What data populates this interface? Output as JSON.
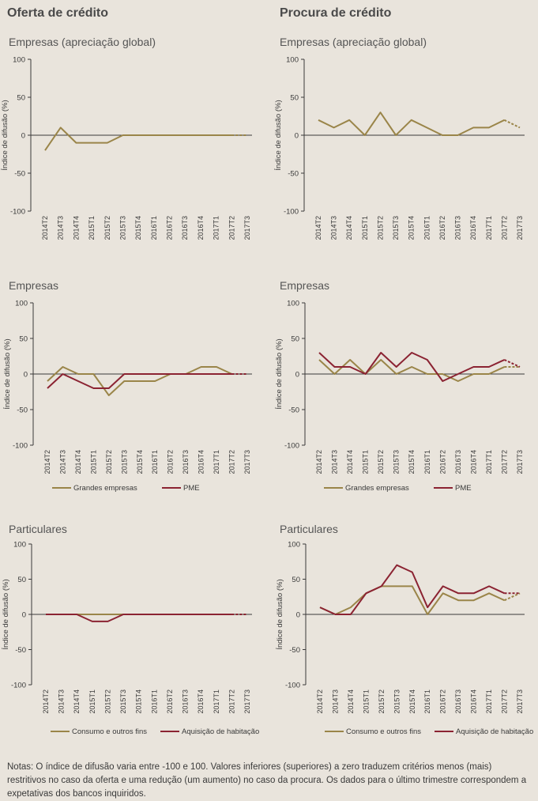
{
  "columns": {
    "left_title": "Oferta de crédito",
    "right_title": "Procura de crédito"
  },
  "colors": {
    "gold": "#9a8549",
    "red": "#8b2332",
    "axis": "#3a3a3a"
  },
  "notes": "Notas: O índice de difusão varia entre -100 e 100. Valores inferiores (superiores) a zero traduzem critérios menos (mais) restritivos no caso da oferta e uma redução (um aumento) no caso da procura. Os dados para o último trimestre correspondem a expetativas dos bancos inquiridos.",
  "chart_data": [
    {
      "id": "supply-global",
      "type": "line",
      "title": "Empresas (apreciação global)",
      "ylabel": "Índice de difusão (%)",
      "ylim": [
        -100,
        100
      ],
      "yticks": [
        "100",
        "50",
        "0",
        "-50",
        "-100"
      ],
      "categories": [
        "2014T2",
        "2014T3",
        "2014T4",
        "2015T1",
        "2015T2",
        "2015T3",
        "2015T4",
        "2016T1",
        "2016T2",
        "2016T3",
        "2016T4",
        "2017T1",
        "2017T2",
        "2017T3"
      ],
      "series": [
        {
          "color": "gold",
          "values": [
            -20,
            10,
            -10,
            -10,
            -10,
            0,
            0,
            0,
            0,
            0,
            0,
            0,
            0,
            0
          ]
        }
      ]
    },
    {
      "id": "demand-global",
      "type": "line",
      "title": "Empresas (apreciação global)",
      "ylabel": "Índice de difusão (%)",
      "ylim": [
        -100,
        100
      ],
      "yticks": [
        "100",
        "50",
        "0",
        "-50",
        "-100"
      ],
      "categories": [
        "2014T2",
        "2014T3",
        "2014T4",
        "2015T1",
        "2015T2",
        "2015T3",
        "2015T4",
        "2016T1",
        "2016T2",
        "2016T3",
        "2016T4",
        "2017T1",
        "2017T2",
        "2017T3"
      ],
      "series": [
        {
          "color": "gold",
          "values": [
            20,
            10,
            20,
            0,
            30,
            0,
            20,
            10,
            0,
            0,
            10,
            10,
            20,
            10
          ]
        }
      ]
    },
    {
      "id": "supply-firms",
      "type": "line",
      "title": "Empresas",
      "ylabel": "Índice de difusão (%)",
      "ylim": [
        -100,
        100
      ],
      "yticks": [
        "100",
        "50",
        "0",
        "-50",
        "-100"
      ],
      "categories": [
        "2014T2",
        "2014T3",
        "2014T4",
        "2015T1",
        "2015T2",
        "2015T3",
        "2015T4",
        "2016T1",
        "2016T2",
        "2016T3",
        "2016T4",
        "2017T1",
        "2017T2",
        "2017T3"
      ],
      "series": [
        {
          "name": "Grandes empresas",
          "color": "gold",
          "values": [
            -10,
            10,
            0,
            0,
            -30,
            -10,
            -10,
            -10,
            0,
            0,
            10,
            10,
            0,
            0
          ]
        },
        {
          "name": "PME",
          "color": "red",
          "values": [
            -20,
            0,
            -10,
            -20,
            -20,
            0,
            0,
            0,
            0,
            0,
            0,
            0,
            0,
            0
          ]
        }
      ]
    },
    {
      "id": "demand-firms",
      "type": "line",
      "title": "Empresas",
      "ylabel": "Índice de difusão (%)",
      "ylim": [
        -100,
        100
      ],
      "yticks": [
        "100",
        "50",
        "0",
        "-50",
        "-100"
      ],
      "categories": [
        "2014T2",
        "2014T3",
        "2014T4",
        "2015T1",
        "2015T2",
        "2015T3",
        "2015T4",
        "2016T1",
        "2016T2",
        "2016T3",
        "2016T4",
        "2017T1",
        "2017T2",
        "2017T3"
      ],
      "series": [
        {
          "name": "Grandes empresas",
          "color": "gold",
          "values": [
            20,
            0,
            20,
            0,
            20,
            0,
            10,
            0,
            0,
            -10,
            0,
            0,
            10,
            10
          ]
        },
        {
          "name": "PME",
          "color": "red",
          "values": [
            30,
            10,
            10,
            0,
            30,
            10,
            30,
            20,
            -10,
            0,
            10,
            10,
            20,
            10
          ]
        }
      ]
    },
    {
      "id": "supply-households",
      "type": "line",
      "title": "Particulares",
      "ylabel": "Índice de difusão (%)",
      "ylim": [
        -100,
        100
      ],
      "yticks": [
        "100",
        "50",
        "0",
        "-50",
        "-100"
      ],
      "categories": [
        "2014T2",
        "2014T3",
        "2014T4",
        "2015T1",
        "2015T2",
        "2015T3",
        "2015T4",
        "2016T1",
        "2016T2",
        "2016T3",
        "2016T4",
        "2017T1",
        "2017T2",
        "2017T3"
      ],
      "series": [
        {
          "name": "Consumo e outros fins",
          "color": "gold",
          "values": [
            0,
            0,
            0,
            0,
            0,
            0,
            0,
            0,
            0,
            0,
            0,
            0,
            0,
            0
          ]
        },
        {
          "name": "Aquisição de habitação",
          "color": "red",
          "values": [
            0,
            0,
            0,
            -10,
            -10,
            0,
            0,
            0,
            0,
            0,
            0,
            0,
            0,
            0
          ]
        }
      ]
    },
    {
      "id": "demand-households",
      "type": "line",
      "title": "Particulares",
      "ylabel": "Índice de difusão (%)",
      "ylim": [
        -100,
        100
      ],
      "yticks": [
        "100",
        "50",
        "0",
        "-50",
        "-100"
      ],
      "categories": [
        "2014T2",
        "2014T3",
        "2014T4",
        "2015T1",
        "2015T2",
        "2015T3",
        "2015T4",
        "2016T1",
        "2016T2",
        "2016T3",
        "2016T4",
        "2017T1",
        "2017T2",
        "2017T3"
      ],
      "series": [
        {
          "name": "Consumo e outros fins",
          "color": "gold",
          "values": [
            10,
            0,
            10,
            30,
            40,
            40,
            40,
            0,
            30,
            20,
            20,
            30,
            20,
            30
          ]
        },
        {
          "name": "Aquisição de habitação",
          "color": "red",
          "values": [
            10,
            0,
            0,
            30,
            40,
            70,
            60,
            10,
            40,
            30,
            30,
            40,
            30,
            30
          ]
        }
      ]
    }
  ]
}
